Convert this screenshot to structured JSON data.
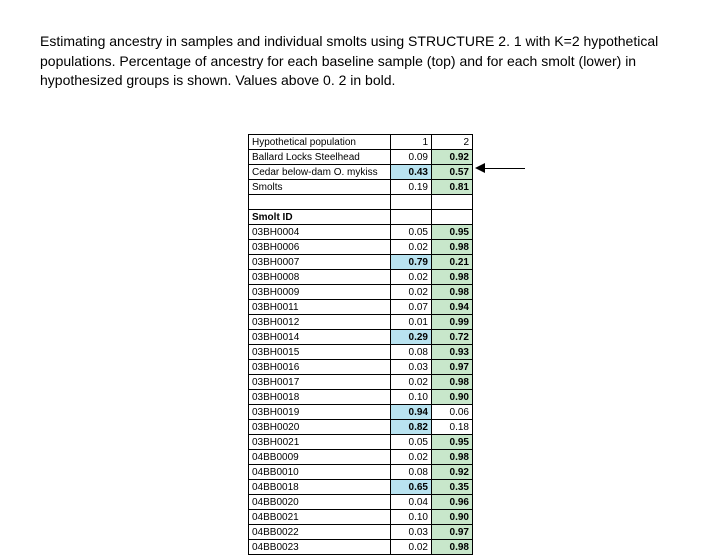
{
  "caption": "Estimating ancestry in samples and individual smolts using STRUCTURE 2. 1 with K=2 hypothetical populations.  Percentage of ancestry for each baseline sample (top) and for each smolt (lower) in hypothesized groups is shown.  Values above 0. 2 in bold.",
  "threshold": 0.2,
  "colors": {
    "highlight_blue": "#b9e3f0",
    "highlight_green": "#c8e7cb",
    "border": "#000000",
    "text": "#000000",
    "background": "#ffffff"
  },
  "header": {
    "label": "Hypothetical population",
    "c1": "1",
    "c2": "2"
  },
  "top_rows": [
    {
      "label": "Ballard Locks Steelhead",
      "v1": "0.09",
      "v2": "0.92",
      "hl1": false,
      "hl2": true
    },
    {
      "label": "Cedar below-dam O. mykiss",
      "v1": "0.43",
      "v2": "0.57",
      "hl1": true,
      "hl2": true
    },
    {
      "label": "Smolts",
      "v1": "0.19",
      "v2": "0.81",
      "hl1": false,
      "hl2": true
    }
  ],
  "section_label": "Smolt ID",
  "smolt_rows": [
    {
      "id": "03BH0004",
      "v1": "0.05",
      "v2": "0.95",
      "hl1": false,
      "hl2": true
    },
    {
      "id": "03BH0006",
      "v1": "0.02",
      "v2": "0.98",
      "hl1": false,
      "hl2": true
    },
    {
      "id": "03BH0007",
      "v1": "0.79",
      "v2": "0.21",
      "hl1": true,
      "hl2": true
    },
    {
      "id": "03BH0008",
      "v1": "0.02",
      "v2": "0.98",
      "hl1": false,
      "hl2": true
    },
    {
      "id": "03BH0009",
      "v1": "0.02",
      "v2": "0.98",
      "hl1": false,
      "hl2": true
    },
    {
      "id": "03BH0011",
      "v1": "0.07",
      "v2": "0.94",
      "hl1": false,
      "hl2": true
    },
    {
      "id": "03BH0012",
      "v1": "0.01",
      "v2": "0.99",
      "hl1": false,
      "hl2": true
    },
    {
      "id": "03BH0014",
      "v1": "0.29",
      "v2": "0.72",
      "hl1": true,
      "hl2": true
    },
    {
      "id": "03BH0015",
      "v1": "0.08",
      "v2": "0.93",
      "hl1": false,
      "hl2": true
    },
    {
      "id": "03BH0016",
      "v1": "0.03",
      "v2": "0.97",
      "hl1": false,
      "hl2": true
    },
    {
      "id": "03BH0017",
      "v1": "0.02",
      "v2": "0.98",
      "hl1": false,
      "hl2": true
    },
    {
      "id": "03BH0018",
      "v1": "0.10",
      "v2": "0.90",
      "hl1": false,
      "hl2": true
    },
    {
      "id": "03BH0019",
      "v1": "0.94",
      "v2": "0.06",
      "hl1": true,
      "hl2": false
    },
    {
      "id": "03BH0020",
      "v1": "0.82",
      "v2": "0.18",
      "hl1": true,
      "hl2": false
    },
    {
      "id": "03BH0021",
      "v1": "0.05",
      "v2": "0.95",
      "hl1": false,
      "hl2": true
    },
    {
      "id": "04BB0009",
      "v1": "0.02",
      "v2": "0.98",
      "hl1": false,
      "hl2": true
    },
    {
      "id": "04BB0010",
      "v1": "0.08",
      "v2": "0.92",
      "hl1": false,
      "hl2": true
    },
    {
      "id": "04BB0018",
      "v1": "0.65",
      "v2": "0.35",
      "hl1": true,
      "hl2": true
    },
    {
      "id": "04BB0020",
      "v1": "0.04",
      "v2": "0.96",
      "hl1": false,
      "hl2": true
    },
    {
      "id": "04BB0021",
      "v1": "0.10",
      "v2": "0.90",
      "hl1": false,
      "hl2": true
    },
    {
      "id": "04BB0022",
      "v1": "0.03",
      "v2": "0.97",
      "hl1": false,
      "hl2": true
    },
    {
      "id": "04BB0023",
      "v1": "0.02",
      "v2": "0.98",
      "hl1": false,
      "hl2": true
    }
  ]
}
